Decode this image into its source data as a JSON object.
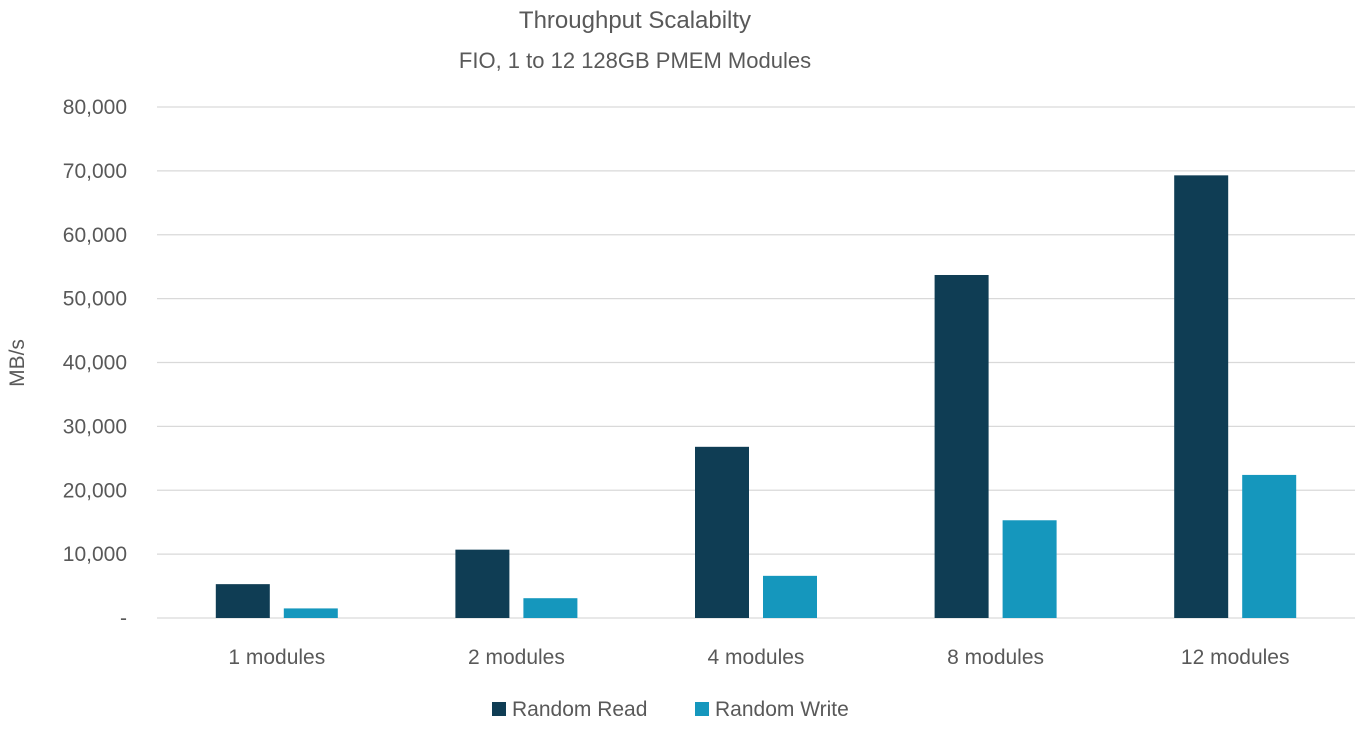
{
  "chart_data": {
    "type": "bar",
    "title": "Throughput Scalabilty",
    "subtitle": "FIO, 1 to 12 128GB PMEM Modules",
    "xlabel": "",
    "ylabel": "MB/s",
    "categories": [
      "1 modules",
      "2 modules",
      "4 modules",
      "8 modules",
      "12 modules"
    ],
    "series": [
      {
        "name": "Random Read",
        "color": "#0f3d54",
        "values": [
          5300,
          10700,
          26800,
          53700,
          69300
        ]
      },
      {
        "name": "Random Write",
        "color": "#1597bd",
        "values": [
          1500,
          3100,
          6600,
          15300,
          22400
        ]
      }
    ],
    "ylim": [
      0,
      80000
    ],
    "yticks": [
      {
        "value": 0,
        "label": "-"
      },
      {
        "value": 10000,
        "label": "10,000"
      },
      {
        "value": 20000,
        "label": "20,000"
      },
      {
        "value": 30000,
        "label": "30,000"
      },
      {
        "value": 40000,
        "label": "40,000"
      },
      {
        "value": 50000,
        "label": "50,000"
      },
      {
        "value": 60000,
        "label": "60,000"
      },
      {
        "value": 70000,
        "label": "70,000"
      },
      {
        "value": 80000,
        "label": "80,000"
      }
    ],
    "grid": true,
    "legend_position": "bottom"
  }
}
